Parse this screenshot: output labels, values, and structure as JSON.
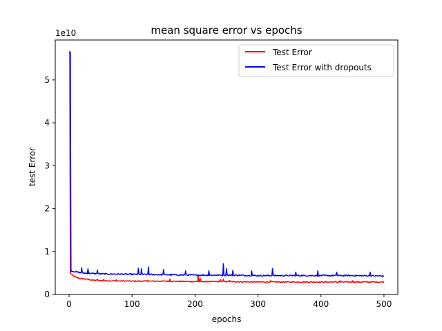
{
  "chart_data": {
    "type": "line",
    "title": "mean square error vs epochs",
    "xlabel": "epochs",
    "ylabel": "test Error",
    "y_multiplier": "1e10",
    "xlim": [
      -22,
      522
    ],
    "ylim": [
      0,
      5.93
    ],
    "xticks": [
      0,
      100,
      200,
      300,
      400,
      500
    ],
    "yticks": [
      0,
      1,
      2,
      3,
      4,
      5
    ],
    "legend_position": "upper right",
    "grid": false,
    "series": [
      {
        "name": "Test Error",
        "color": "#ff0000",
        "baseline_points": [
          [
            0,
            5.65
          ],
          [
            1,
            5.65
          ],
          [
            2,
            0.5
          ],
          [
            5,
            0.45
          ],
          [
            10,
            0.4
          ],
          [
            20,
            0.37
          ],
          [
            40,
            0.33
          ],
          [
            60,
            0.32
          ],
          [
            100,
            0.31
          ],
          [
            150,
            0.31
          ],
          [
            200,
            0.3
          ],
          [
            250,
            0.3
          ],
          [
            300,
            0.29
          ],
          [
            350,
            0.29
          ],
          [
            400,
            0.29
          ],
          [
            450,
            0.29
          ],
          [
            500,
            0.29
          ]
        ],
        "noise_amplitude": 0.012,
        "spikes": [
          [
            45,
            0.35
          ],
          [
            55,
            0.35
          ],
          [
            75,
            0.34
          ],
          [
            125,
            0.33
          ],
          [
            160,
            0.36
          ],
          [
            205,
            0.45
          ],
          [
            208,
            0.38
          ],
          [
            240,
            0.35
          ],
          [
            245,
            0.36
          ],
          [
            255,
            0.33
          ],
          [
            320,
            0.32
          ],
          [
            430,
            0.32
          ],
          [
            450,
            0.32
          ]
        ]
      },
      {
        "name": "Test Error with dropouts",
        "color": "#0000ff",
        "baseline_points": [
          [
            0,
            5.65
          ],
          [
            2,
            5.65
          ],
          [
            3,
            0.55
          ],
          [
            10,
            0.53
          ],
          [
            20,
            0.5
          ],
          [
            50,
            0.48
          ],
          [
            100,
            0.47
          ],
          [
            150,
            0.46
          ],
          [
            200,
            0.45
          ],
          [
            250,
            0.45
          ],
          [
            300,
            0.44
          ],
          [
            350,
            0.44
          ],
          [
            400,
            0.44
          ],
          [
            450,
            0.44
          ],
          [
            500,
            0.43
          ]
        ],
        "noise_amplitude": 0.015,
        "spikes": [
          [
            20,
            0.62
          ],
          [
            30,
            0.6
          ],
          [
            45,
            0.57
          ],
          [
            110,
            0.61
          ],
          [
            115,
            0.6
          ],
          [
            126,
            0.64
          ],
          [
            150,
            0.58
          ],
          [
            185,
            0.55
          ],
          [
            222,
            0.55
          ],
          [
            245,
            0.72
          ],
          [
            250,
            0.6
          ],
          [
            260,
            0.56
          ],
          [
            290,
            0.55
          ],
          [
            323,
            0.6
          ],
          [
            360,
            0.52
          ],
          [
            395,
            0.55
          ],
          [
            425,
            0.52
          ],
          [
            478,
            0.52
          ]
        ]
      }
    ]
  }
}
